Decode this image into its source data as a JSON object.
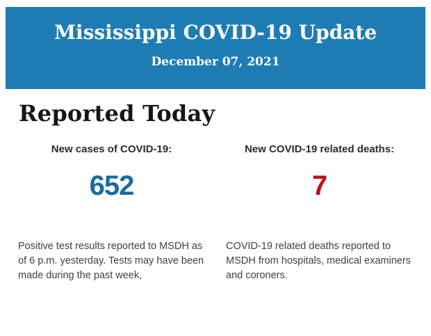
{
  "colors": {
    "banner_bg": "#1e7cb5",
    "banner_text": "#ffffff",
    "heading_text": "#161616",
    "label_text": "#2b2b2b",
    "body_text": "#404040",
    "cases_number": "#186ca3",
    "deaths_number": "#c50d17"
  },
  "banner": {
    "title": "Mississippi COVID-19 Update",
    "date": "December 07, 2021"
  },
  "reported_today": {
    "heading": "Reported Today",
    "stats": [
      {
        "label": "New cases of COVID-19:",
        "value": "652",
        "color": "#186ca3",
        "description": "Positive test results reported to MSDH as of 6 p.m. yesterday. Tests may have been made during the past week,"
      },
      {
        "label": "New COVID-19 related deaths:",
        "value": "7",
        "color": "#c50d17",
        "description": "COVID-19 related deaths reported to MSDH from hospitals, medical examiners and coroners."
      }
    ]
  }
}
